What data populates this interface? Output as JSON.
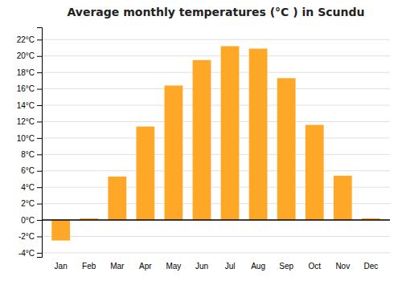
{
  "chart_data": {
    "type": "bar",
    "title": "Average monthly temperatures (°C ) in Scundu",
    "categories": [
      "Jan",
      "Feb",
      "Mar",
      "Apr",
      "May",
      "Jun",
      "Jul",
      "Aug",
      "Sep",
      "Oct",
      "Nov",
      "Dec"
    ],
    "values": [
      -2.5,
      0.2,
      5.3,
      11.4,
      16.4,
      19.5,
      21.2,
      20.9,
      17.3,
      11.6,
      5.4,
      0.2
    ],
    "color": "#FFA726",
    "ylim": [
      -4.5,
      23.5
    ],
    "yticks": [
      {
        "value": -4,
        "label": "-4°C"
      },
      {
        "value": -2,
        "label": "-2°C"
      },
      {
        "value": 0,
        "label": "0°C"
      },
      {
        "value": 2,
        "label": "2°C"
      },
      {
        "value": 4,
        "label": "4°C"
      },
      {
        "value": 6,
        "label": "6°C"
      },
      {
        "value": 8,
        "label": "8°C"
      },
      {
        "value": 10,
        "label": "10°C"
      },
      {
        "value": 12,
        "label": "12°C"
      },
      {
        "value": 14,
        "label": "14°C"
      },
      {
        "value": 16,
        "label": "16°C"
      },
      {
        "value": 18,
        "label": "18°C"
      },
      {
        "value": 20,
        "label": "20°C"
      },
      {
        "value": 22,
        "label": "22°C"
      }
    ],
    "grid": true
  }
}
